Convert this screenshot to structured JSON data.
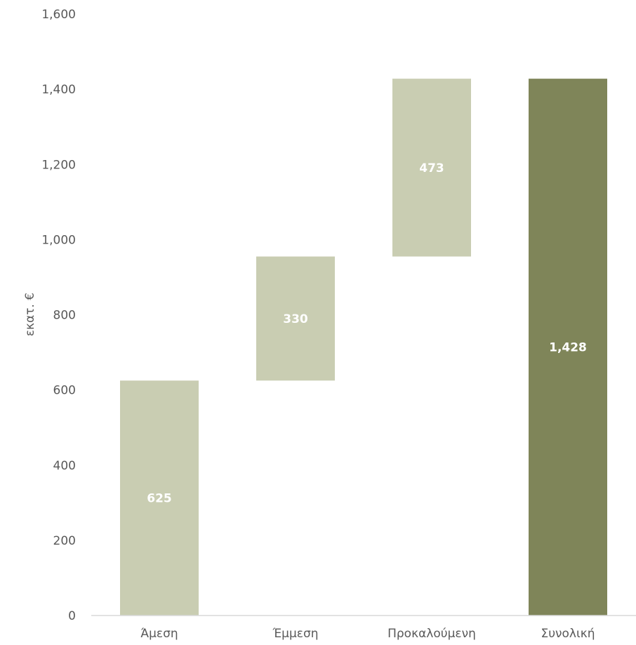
{
  "chart_data": {
    "type": "bar",
    "subtype": "waterfall",
    "categories": [
      "Άμεση",
      "Έμμεση",
      "Προκαλούμενη",
      "Συνολική"
    ],
    "values": [
      625,
      330,
      473,
      1428
    ],
    "bar_kinds": [
      "delta",
      "delta",
      "delta",
      "total"
    ],
    "data_labels": [
      "625",
      "330",
      "473",
      "1,428"
    ],
    "ylabel": "εκατ. €",
    "xlabel": "",
    "ylim": [
      0,
      1600
    ],
    "yticks": [
      0,
      200,
      400,
      600,
      800,
      1000,
      1200,
      1400,
      1600
    ],
    "ytick_labels": [
      "0",
      "200",
      "400",
      "600",
      "800",
      "1,000",
      "1,200",
      "1,400",
      "1,600"
    ],
    "grid": false,
    "legend": "none",
    "colors": {
      "delta": "#c9cdb2",
      "total": "#7f8559",
      "axis": "#d9d9d9",
      "text": "#595959",
      "label": "#ffffff"
    }
  }
}
